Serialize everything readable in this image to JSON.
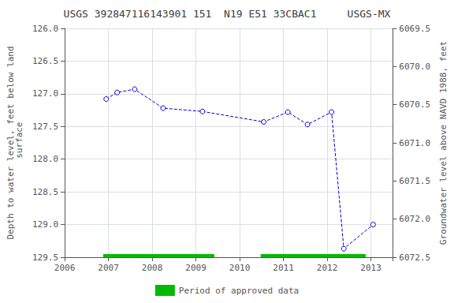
{
  "chart_data": {
    "type": "line",
    "title": "USGS 392847116143901 151  N19 E51 33CBAC1     USGS-MX",
    "ylabel": "Depth to water level, feet below land\n surface",
    "y2label": "Groundwater level above NAVD 1988, feet",
    "x": [
      2006.95,
      2007.2,
      2007.6,
      2008.25,
      2009.15,
      2010.55,
      2011.1,
      2011.55,
      2012.1,
      2012.38,
      2013.05
    ],
    "series": [
      {
        "type": "line",
        "color": "#0000cc",
        "marker": "circle",
        "line_style": "dashed",
        "values": [
          127.08,
          126.98,
          126.93,
          127.22,
          127.27,
          127.43,
          127.28,
          127.47,
          127.28,
          129.37,
          129.0
        ]
      },
      {
        "name": "Period of approved data",
        "type": "band",
        "color": "#00bb00",
        "values": [
          [
            2006.88,
            2009.42
          ],
          [
            2010.48,
            2012.88
          ]
        ]
      }
    ],
    "xlim": [
      2006.0,
      2013.5
    ],
    "xticks": [
      2006,
      2007,
      2008,
      2009,
      2010,
      2011,
      2012,
      2013
    ],
    "ylim": [
      129.5,
      126.0
    ],
    "yticks": [
      {
        "value": 126.0,
        "label": "126.0"
      },
      126.5,
      {
        "value": 127.0,
        "label": "127.0"
      },
      127.5,
      {
        "value": 128.0,
        "label": "128.0"
      },
      128.5,
      {
        "value": 129.0,
        "label": "129.0"
      },
      129.5
    ],
    "y2lim": [
      6072.5,
      6069.5
    ],
    "y2ticks": [
      6072.5,
      {
        "value": 6072.0,
        "label": "6072.0"
      },
      6071.5,
      {
        "value": 6071.0,
        "label": "6071.0"
      },
      6070.5,
      {
        "value": 6070.0,
        "label": "6070.0"
      },
      6069.5
    ],
    "grid": true,
    "legend": "bottom"
  }
}
